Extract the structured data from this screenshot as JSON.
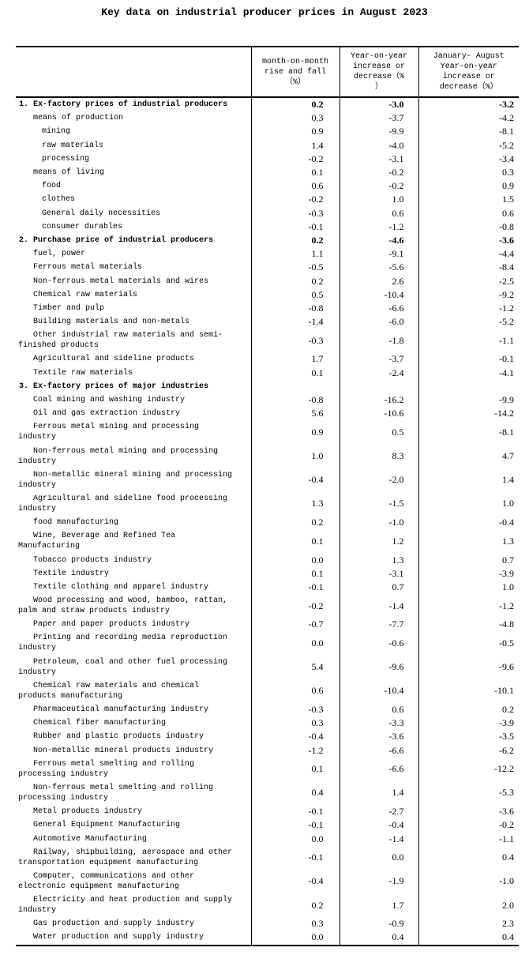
{
  "title": "Key data on industrial producer prices in August 2023",
  "table": {
    "headers": [
      "month-on-month\nrise and fall\n（%）",
      "Year-on-year\nincrease or\ndecrease（%\n）",
      "January- August\nYear-on-year\nincrease or\ndecrease（%）"
    ],
    "rows": [
      {
        "label": "1. Ex-factory prices of industrial producers",
        "level": 0,
        "bold": true,
        "values": [
          "0.2",
          "-3.0",
          "-3.2"
        ]
      },
      {
        "label": "means of production",
        "level": 1,
        "bold": false,
        "values": [
          "0.3",
          "-3.7",
          "-4.2"
        ]
      },
      {
        "label": "mining",
        "level": 2,
        "bold": false,
        "values": [
          "0.9",
          "-9.9",
          "-8.1"
        ]
      },
      {
        "label": "raw materials",
        "level": 2,
        "bold": false,
        "values": [
          "1.4",
          "-4.0",
          "-5.2"
        ]
      },
      {
        "label": "processing",
        "level": 2,
        "bold": false,
        "values": [
          "-0.2",
          "-3.1",
          "-3.4"
        ]
      },
      {
        "label": "means of living",
        "level": 1,
        "bold": false,
        "values": [
          "0.1",
          "-0.2",
          "0.3"
        ]
      },
      {
        "label": "food",
        "level": 2,
        "bold": false,
        "values": [
          "0.6",
          "-0.2",
          "0.9"
        ]
      },
      {
        "label": "clothes",
        "level": 2,
        "bold": false,
        "values": [
          "-0.2",
          "1.0",
          "1.5"
        ]
      },
      {
        "label": "General daily necessities",
        "level": 2,
        "bold": false,
        "values": [
          "-0.3",
          "0.6",
          "0.6"
        ]
      },
      {
        "label": "consumer durables",
        "level": 2,
        "bold": false,
        "values": [
          "-0.1",
          "-1.2",
          "-0.8"
        ]
      },
      {
        "label": "2. Purchase price of industrial producers",
        "level": 0,
        "bold": true,
        "values": [
          "0.2",
          "-4.6",
          "-3.6"
        ]
      },
      {
        "label": "fuel, power",
        "level": 1,
        "bold": false,
        "values": [
          "1.1",
          "-9.1",
          "-4.4"
        ]
      },
      {
        "label": "Ferrous metal materials",
        "level": 1,
        "bold": false,
        "values": [
          "-0.5",
          "-5.6",
          "-8.4"
        ]
      },
      {
        "label": "Non-ferrous metal materials and wires",
        "level": 1,
        "bold": false,
        "values": [
          "0.2",
          "2.6",
          "-2.5"
        ]
      },
      {
        "label": "Chemical raw materials",
        "level": 1,
        "bold": false,
        "values": [
          "0.5",
          "-10.4",
          "-9.2"
        ]
      },
      {
        "label": "Timber and pulp",
        "level": 1,
        "bold": false,
        "values": [
          "-0.8",
          "-6.6",
          "-1.2"
        ]
      },
      {
        "label": "Building materials and non-metals",
        "level": 1,
        "bold": false,
        "values": [
          "-1.4",
          "-6.0",
          "-5.2"
        ]
      },
      {
        "label": "Other industrial raw materials and semi-\nfinished products",
        "level": 1,
        "bold": false,
        "values": [
          "-0.3",
          "-1.8",
          "-1.1"
        ]
      },
      {
        "label": "Agricultural and sideline products",
        "level": 1,
        "bold": false,
        "values": [
          "1.7",
          "-3.7",
          "-0.1"
        ]
      },
      {
        "label": "Textile raw materials",
        "level": 1,
        "bold": false,
        "values": [
          "0.1",
          "-2.4",
          "-4.1"
        ]
      },
      {
        "label": "3. Ex-factory prices of major industries",
        "level": 0,
        "bold": true,
        "values": [
          "",
          "",
          ""
        ]
      },
      {
        "label": "Coal mining and washing industry",
        "level": 1,
        "bold": false,
        "values": [
          "-0.8",
          "-16.2",
          "-9.9"
        ]
      },
      {
        "label": "Oil and gas extraction industry",
        "level": 1,
        "bold": false,
        "values": [
          "5.6",
          "-10.6",
          "-14.2"
        ]
      },
      {
        "label": "Ferrous metal mining and processing\nindustry",
        "level": 1,
        "bold": false,
        "values": [
          "0.9",
          "0.5",
          "-8.1"
        ]
      },
      {
        "label": "Non-ferrous metal mining and processing\nindustry",
        "level": 1,
        "bold": false,
        "values": [
          "1.0",
          "8.3",
          "4.7"
        ]
      },
      {
        "label": "Non-metallic mineral mining and processing\nindustry",
        "level": 1,
        "bold": false,
        "values": [
          "-0.4",
          "-2.0",
          "1.4"
        ]
      },
      {
        "label": "Agricultural and sideline food processing\nindustry",
        "level": 1,
        "bold": false,
        "values": [
          "1.3",
          "-1.5",
          "1.0"
        ]
      },
      {
        "label": "food manufacturing",
        "level": 1,
        "bold": false,
        "values": [
          "0.2",
          "-1.0",
          "-0.4"
        ]
      },
      {
        "label": "Wine, Beverage and Refined Tea\nManufacturing",
        "level": 1,
        "bold": false,
        "values": [
          "0.1",
          "1.2",
          "1.3"
        ]
      },
      {
        "label": "Tobacco products industry",
        "level": 1,
        "bold": false,
        "values": [
          "0.0",
          "1.3",
          "0.7"
        ]
      },
      {
        "label": "Textile industry",
        "level": 1,
        "bold": false,
        "values": [
          "0.1",
          "-3.1",
          "-3.9"
        ]
      },
      {
        "label": "Textile clothing and apparel industry",
        "level": 1,
        "bold": false,
        "values": [
          "-0.1",
          "0.7",
          "1.0"
        ]
      },
      {
        "label": "Wood processing and wood, bamboo, rattan,\npalm and straw products industry",
        "level": 1,
        "bold": false,
        "values": [
          "-0.2",
          "-1.4",
          "-1.2"
        ]
      },
      {
        "label": "Paper and paper products industry",
        "level": 1,
        "bold": false,
        "values": [
          "-0.7",
          "-7.7",
          "-4.8"
        ]
      },
      {
        "label": "Printing and recording media reproduction\nindustry",
        "level": 1,
        "bold": false,
        "values": [
          "0.0",
          "-0.6",
          "-0.5"
        ]
      },
      {
        "label": "Petroleum, coal and other fuel processing\nindustry",
        "level": 1,
        "bold": false,
        "values": [
          "5.4",
          "-9.6",
          "-9.6"
        ]
      },
      {
        "label": "Chemical raw materials and chemical\nproducts manufacturing",
        "level": 1,
        "bold": false,
        "values": [
          "0.6",
          "-10.4",
          "-10.1"
        ]
      },
      {
        "label": "Pharmaceutical manufacturing industry",
        "level": 1,
        "bold": false,
        "values": [
          "-0.3",
          "0.6",
          "0.2"
        ]
      },
      {
        "label": "Chemical fiber manufacturing",
        "level": 1,
        "bold": false,
        "values": [
          "0.3",
          "-3.3",
          "-3.9"
        ]
      },
      {
        "label": "Rubber and plastic products industry",
        "level": 1,
        "bold": false,
        "values": [
          "-0.4",
          "-3.6",
          "-3.5"
        ]
      },
      {
        "label": "Non-metallic mineral products industry",
        "level": 1,
        "bold": false,
        "values": [
          "-1.2",
          "-6.6",
          "-6.2"
        ]
      },
      {
        "label": "Ferrous metal smelting and rolling\nprocessing industry",
        "level": 1,
        "bold": false,
        "values": [
          "0.1",
          "-6.6",
          "-12.2"
        ]
      },
      {
        "label": "Non-ferrous metal smelting and rolling\nprocessing industry",
        "level": 1,
        "bold": false,
        "values": [
          "0.4",
          "1.4",
          "-5.3"
        ]
      },
      {
        "label": "Metal products industry",
        "level": 1,
        "bold": false,
        "values": [
          "-0.1",
          "-2.7",
          "-3.6"
        ]
      },
      {
        "label": "General Equipment Manufacturing",
        "level": 1,
        "bold": false,
        "values": [
          "-0.1",
          "-0.4",
          "-0.2"
        ]
      },
      {
        "label": "Automotive Manufacturing",
        "level": 1,
        "bold": false,
        "values": [
          "0.0",
          "-1.4",
          "-1.1"
        ]
      },
      {
        "label": "Railway, shipbuilding, aerospace and other\ntransportation equipment manufacturing",
        "level": 1,
        "bold": false,
        "values": [
          "-0.1",
          "0.0",
          "0.4"
        ]
      },
      {
        "label": "Computer, communications and other\nelectronic equipment manufacturing",
        "level": 1,
        "bold": false,
        "values": [
          "-0.4",
          "-1.9",
          "-1.0"
        ]
      },
      {
        "label": "Electricity and heat production and supply\nindustry",
        "level": 1,
        "bold": false,
        "values": [
          "0.2",
          "1.7",
          "2.0"
        ]
      },
      {
        "label": "Gas production and supply industry",
        "level": 1,
        "bold": false,
        "values": [
          "0.3",
          "-0.9",
          "2.3"
        ]
      },
      {
        "label": "Water production and supply industry",
        "level": 1,
        "bold": false,
        "values": [
          "0.0",
          "0.4",
          "0.4"
        ]
      }
    ]
  }
}
